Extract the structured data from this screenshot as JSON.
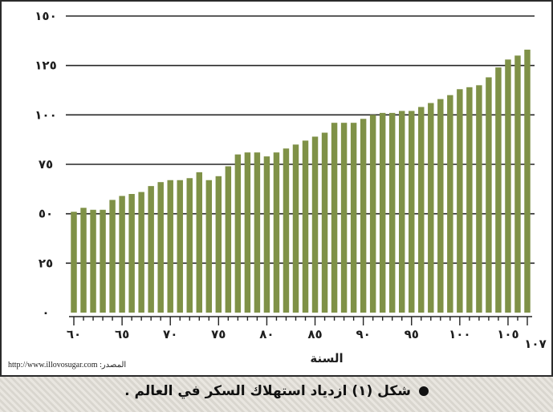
{
  "chart_data": {
    "type": "bar",
    "xlabel": "السنة",
    "ylim": [
      0,
      150
    ],
    "y_ticks": [
      "٠",
      "٢٥",
      "٥٠",
      "٧٥",
      "١٠٠",
      "١٢٥",
      "١٥٠"
    ],
    "y_tick_values": [
      0,
      25,
      50,
      75,
      100,
      125,
      150
    ],
    "x_tick_labels": [
      "٦٠",
      "٦٥",
      "٧٠",
      "٧٥",
      "٨٠",
      "٨٥",
      "٩٠",
      "٩٥",
      "١٠٠",
      "١٠٥",
      "١٠٧"
    ],
    "x_tick_values": [
      60,
      65,
      70,
      75,
      80,
      85,
      90,
      95,
      100,
      105,
      107
    ],
    "x": [
      60,
      61,
      62,
      63,
      64,
      65,
      66,
      67,
      68,
      69,
      70,
      71,
      72,
      73,
      74,
      75,
      76,
      77,
      78,
      79,
      80,
      81,
      82,
      83,
      84,
      85,
      86,
      87,
      88,
      89,
      90,
      91,
      92,
      93,
      94,
      95,
      96,
      97,
      98,
      99,
      100,
      101,
      102,
      103,
      104,
      105,
      106,
      107
    ],
    "values": [
      51,
      53,
      52,
      52,
      57,
      59,
      60,
      61,
      64,
      66,
      67,
      67,
      68,
      71,
      67,
      69,
      74,
      80,
      81,
      81,
      79,
      81,
      83,
      85,
      87,
      89,
      91,
      96,
      96,
      96,
      98,
      100,
      101,
      101,
      102,
      102,
      104,
      106,
      108,
      110,
      113,
      114,
      115,
      119,
      124,
      128,
      130,
      133
    ],
    "grid": true,
    "bar_color": "#7f9147"
  },
  "source_text": "المصدر: http://www.illovosugar.com",
  "caption": "شكل (١) ازدياد استهلاك السكر في العالم ."
}
